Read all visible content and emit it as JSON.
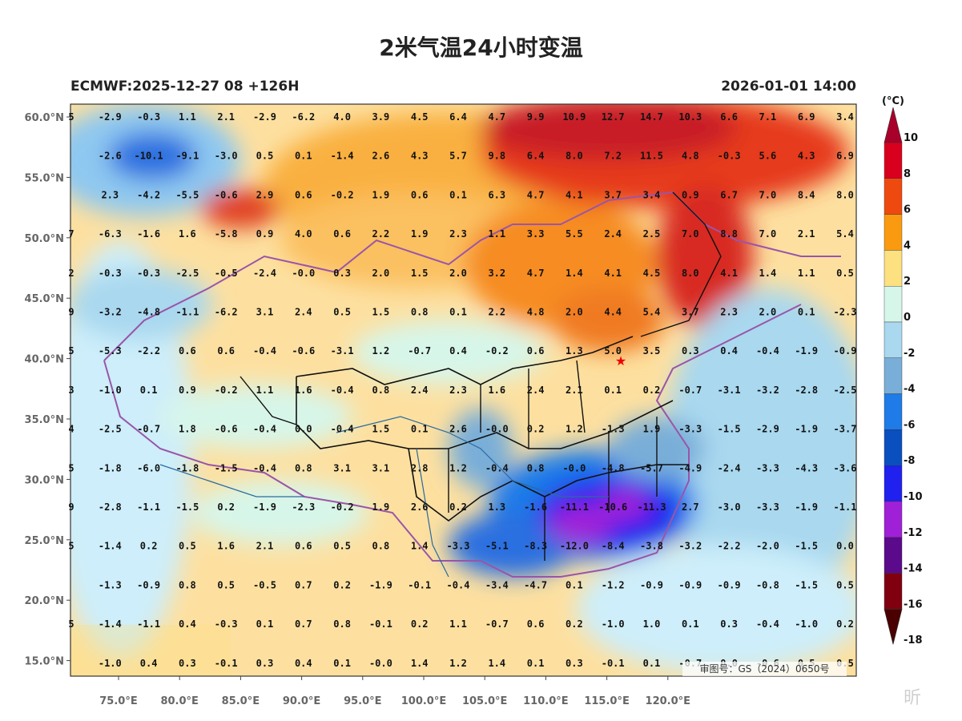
{
  "title": "2米气温24小时变温",
  "subtitle_left": "ECMWF:2025-12-27 08 +126H",
  "subtitle_right": "2026-01-01 14:00",
  "approval_no": "审图号：GS（2024）0650号",
  "watermark": "昕",
  "colorbar": {
    "unit": "(°C)",
    "ticks": [
      "10",
      "8",
      "6",
      "4",
      "2",
      "0",
      "-2",
      "-4",
      "-6",
      "-8",
      "-10",
      "-12",
      "-14",
      "-16",
      "-18"
    ],
    "colors": [
      "#a8002a",
      "#d9001e",
      "#ee4a10",
      "#fa9a10",
      "#fde080",
      "#d7f6ea",
      "#a9d8ef",
      "#79aed8",
      "#1f7be8",
      "#0a4fc0",
      "#2020ef",
      "#a020d8",
      "#5a0a8a",
      "#800010",
      "#4a0000"
    ]
  },
  "axes": {
    "lat_labels": [
      "60.0°N",
      "55.0°N",
      "50.0°N",
      "45.0°N",
      "40.0°N",
      "35.0°N",
      "30.0°N",
      "25.0°N",
      "20.0°N",
      "15.0°N"
    ],
    "lon_labels": [
      "75.0°E",
      "80.0°E",
      "85.0°E",
      "90.0°E",
      "95.0°E",
      "100.0°E",
      "105.0°E",
      "110.0°E",
      "115.0°E",
      "120.0°E"
    ]
  },
  "grid_values": [
    [
      "5",
      "-2.9",
      "-0.3",
      "1.1",
      "2.1",
      "-2.9",
      "-6.2",
      "4.0",
      "3.9",
      "4.5",
      "6.4",
      "4.7",
      "9.9",
      "10.9",
      "12.7",
      "14.7",
      "10.3",
      "6.6",
      "7.1",
      "6.9",
      "3.4"
    ],
    [
      "",
      "-2.6",
      "-10.1",
      "-9.1",
      "-3.0",
      "0.5",
      "0.1",
      "-1.4",
      "2.6",
      "4.3",
      "5.7",
      "9.8",
      "6.4",
      "8.0",
      "7.2",
      "11.5",
      "4.8",
      "-0.3",
      "5.6",
      "4.3",
      "6.9"
    ],
    [
      "",
      "2.3",
      "-4.2",
      "-5.5",
      "-0.6",
      "2.9",
      "0.6",
      "-0.2",
      "1.9",
      "0.6",
      "0.1",
      "6.3",
      "4.7",
      "4.1",
      "3.7",
      "3.4",
      "0.9",
      "6.7",
      "7.0",
      "8.4",
      "8.0"
    ],
    [
      "7",
      "-6.3",
      "-1.6",
      "1.6",
      "-5.8",
      "0.9",
      "4.0",
      "0.6",
      "2.2",
      "1.9",
      "2.3",
      "1.1",
      "3.3",
      "5.5",
      "2.4",
      "2.5",
      "7.0",
      "8.8",
      "7.0",
      "2.1",
      "5.4"
    ],
    [
      "2",
      "-0.3",
      "-0.3",
      "-2.5",
      "-0.5",
      "-2.4",
      "-0.0",
      "0.3",
      "2.0",
      "1.5",
      "2.0",
      "3.2",
      "4.7",
      "1.4",
      "4.1",
      "4.5",
      "8.0",
      "4.1",
      "1.4",
      "1.1",
      "0.5"
    ],
    [
      "9",
      "-3.2",
      "-4.8",
      "-1.1",
      "-6.2",
      "3.1",
      "2.4",
      "0.5",
      "1.5",
      "0.8",
      "0.1",
      "2.2",
      "4.8",
      "2.0",
      "4.4",
      "5.4",
      "3.7",
      "2.3",
      "2.0",
      "0.1",
      "-2.3"
    ],
    [
      "5",
      "-5.3",
      "-2.2",
      "0.6",
      "0.6",
      "-0.4",
      "-0.6",
      "-3.1",
      "1.2",
      "-0.7",
      "0.4",
      "-0.2",
      "0.6",
      "1.3",
      "5.0",
      "3.5",
      "0.3",
      "0.4",
      "-0.4",
      "-1.9",
      "-0.9"
    ],
    [
      "3",
      "-1.0",
      "0.1",
      "0.9",
      "-0.2",
      "1.1",
      "1.6",
      "-0.4",
      "0.8",
      "2.4",
      "2.3",
      "1.6",
      "2.4",
      "2.1",
      "0.1",
      "0.2",
      "-0.7",
      "-3.1",
      "-3.2",
      "-2.8",
      "-2.5"
    ],
    [
      "4",
      "-2.5",
      "-0.7",
      "1.8",
      "-0.6",
      "-0.4",
      "0.0",
      "-0.4",
      "1.5",
      "0.1",
      "2.6",
      "-0.0",
      "0.2",
      "1.2",
      "-1.3",
      "1.9",
      "-3.3",
      "-1.5",
      "-2.9",
      "-1.9",
      "-3.7"
    ],
    [
      "5",
      "-1.8",
      "-6.0",
      "-1.8",
      "-1.5",
      "-0.4",
      "0.8",
      "3.1",
      "3.1",
      "2.8",
      "1.2",
      "-0.4",
      "0.8",
      "-0.0",
      "-4.8",
      "-5.7",
      "-4.9",
      "-2.4",
      "-3.3",
      "-4.3",
      "-3.6"
    ],
    [
      "9",
      "-2.8",
      "-1.1",
      "-1.5",
      "0.2",
      "-1.9",
      "-2.3",
      "-0.2",
      "1.9",
      "2.6",
      "0.2",
      "1.3",
      "-1.6",
      "-11.1",
      "-10.6",
      "-11.3",
      "2.7",
      "-3.0",
      "-3.3",
      "-1.9",
      "-1.1"
    ],
    [
      "5",
      "-1.4",
      "0.2",
      "0.5",
      "1.6",
      "2.1",
      "0.6",
      "0.5",
      "0.8",
      "1.4",
      "-3.3",
      "-5.1",
      "-8.3",
      "-12.0",
      "-8.4",
      "-3.8",
      "-3.2",
      "-2.2",
      "-2.0",
      "-1.5",
      "0.0"
    ],
    [
      "",
      "-1.3",
      "-0.9",
      "0.8",
      "0.5",
      "-0.5",
      "0.7",
      "0.2",
      "-1.9",
      "-0.1",
      "-0.4",
      "-3.4",
      "-4.7",
      "0.1",
      "-1.2",
      "-0.9",
      "-0.9",
      "-0.9",
      "-0.8",
      "-1.5",
      "0.5"
    ],
    [
      "5",
      "-1.4",
      "-1.1",
      "0.4",
      "-0.3",
      "0.1",
      "0.7",
      "0.8",
      "-0.1",
      "0.2",
      "1.1",
      "-0.7",
      "0.6",
      "0.2",
      "-1.0",
      "1.0",
      "0.1",
      "0.3",
      "-0.4",
      "-1.0",
      "0.2"
    ],
    [
      "",
      "-1.0",
      "0.4",
      "0.3",
      "-0.1",
      "0.3",
      "0.4",
      "0.1",
      "-0.0",
      "1.4",
      "1.2",
      "1.4",
      "0.1",
      "0.3",
      "-0.1",
      "0.1",
      "-0.7",
      "0.0",
      "-0.6",
      "0.5",
      "0.5"
    ]
  ]
}
